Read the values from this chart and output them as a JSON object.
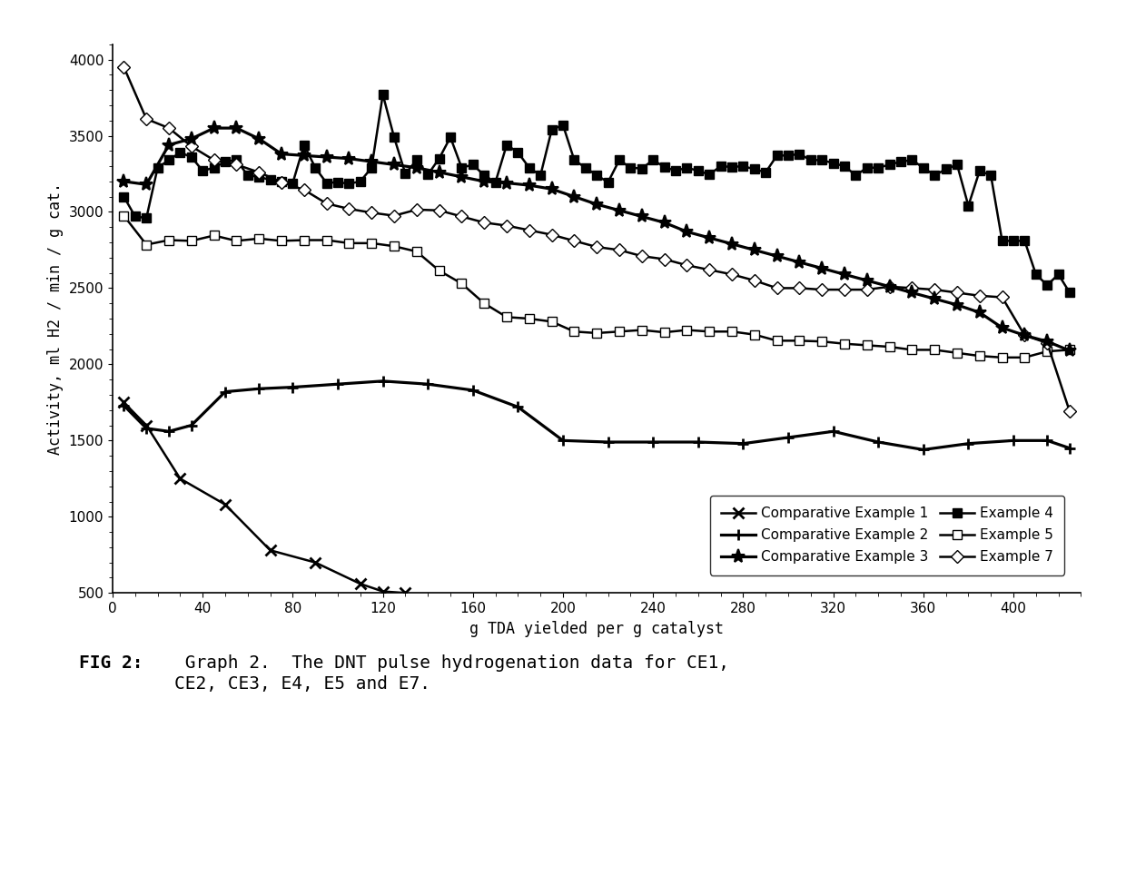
{
  "xlabel": "g TDA yielded per g catalyst",
  "ylabel": "Activity, ml H2 / min / g cat.",
  "xlim": [
    0,
    430
  ],
  "ylim": [
    500,
    4100
  ],
  "yticks": [
    500,
    1000,
    1500,
    2000,
    2500,
    3000,
    3500,
    4000
  ],
  "xticks": [
    0,
    40,
    80,
    120,
    160,
    200,
    240,
    280,
    320,
    360,
    400
  ],
  "background_color": "#ffffff",
  "caption_bold": "FIG 2:",
  "caption_normal": " Graph 2.  The DNT pulse hydrogenation data for CE1,\nCE2, CE3, E4, E5 and E7.",
  "CE1_x": [
    5,
    15,
    30,
    50,
    70,
    90,
    110,
    120,
    130
  ],
  "CE1_y": [
    1750,
    1600,
    1250,
    1080,
    780,
    700,
    560,
    510,
    500
  ],
  "CE2_x": [
    5,
    15,
    25,
    35,
    50,
    65,
    80,
    100,
    120,
    140,
    160,
    180,
    200,
    220,
    240,
    260,
    280,
    300,
    320,
    340,
    360,
    380,
    400,
    415,
    425
  ],
  "CE2_y": [
    1730,
    1580,
    1560,
    1600,
    1820,
    1840,
    1850,
    1870,
    1890,
    1870,
    1830,
    1720,
    1500,
    1490,
    1490,
    1490,
    1480,
    1520,
    1560,
    1490,
    1440,
    1480,
    1500,
    1500,
    1450
  ],
  "CE3_x": [
    5,
    15,
    25,
    35,
    45,
    55,
    65,
    75,
    85,
    95,
    105,
    115,
    125,
    135,
    145,
    155,
    165,
    175,
    185,
    195,
    205,
    215,
    225,
    235,
    245,
    255,
    265,
    275,
    285,
    295,
    305,
    315,
    325,
    335,
    345,
    355,
    365,
    375,
    385,
    395,
    405,
    415,
    425
  ],
  "CE3_y": [
    3200,
    3180,
    3440,
    3480,
    3550,
    3550,
    3480,
    3380,
    3370,
    3360,
    3350,
    3330,
    3310,
    3290,
    3260,
    3230,
    3200,
    3190,
    3175,
    3150,
    3100,
    3050,
    3010,
    2970,
    2930,
    2870,
    2830,
    2790,
    2750,
    2710,
    2670,
    2630,
    2590,
    2550,
    2510,
    2470,
    2430,
    2390,
    2340,
    2240,
    2190,
    2150,
    2090
  ],
  "E4_x": [
    5,
    10,
    15,
    20,
    25,
    30,
    35,
    40,
    45,
    50,
    55,
    60,
    65,
    70,
    75,
    80,
    85,
    90,
    95,
    100,
    105,
    110,
    115,
    120,
    125,
    130,
    135,
    140,
    145,
    150,
    155,
    160,
    165,
    170,
    175,
    180,
    185,
    190,
    195,
    200,
    205,
    210,
    215,
    220,
    225,
    230,
    235,
    240,
    245,
    250,
    255,
    260,
    265,
    270,
    275,
    280,
    285,
    290,
    295,
    300,
    305,
    310,
    315,
    320,
    325,
    330,
    335,
    340,
    345,
    350,
    355,
    360,
    365,
    370,
    375,
    380,
    385,
    390,
    395,
    400,
    405,
    410,
    415,
    420,
    425
  ],
  "E4_y": [
    3100,
    2970,
    2960,
    3290,
    3340,
    3390,
    3360,
    3270,
    3290,
    3330,
    3340,
    3240,
    3230,
    3210,
    3200,
    3190,
    3440,
    3290,
    3190,
    3195,
    3185,
    3200,
    3290,
    3770,
    3490,
    3250,
    3340,
    3245,
    3350,
    3490,
    3290,
    3310,
    3240,
    3195,
    3440,
    3390,
    3290,
    3240,
    3540,
    3570,
    3340,
    3290,
    3240,
    3195,
    3340,
    3290,
    3285,
    3340,
    3295,
    3270,
    3290,
    3270,
    3245,
    3300,
    3295,
    3300,
    3280,
    3260,
    3370,
    3370,
    3380,
    3340,
    3340,
    3320,
    3300,
    3240,
    3290,
    3290,
    3310,
    3330,
    3340,
    3290,
    3240,
    3280,
    3310,
    3040,
    3270,
    3240,
    2810,
    2810,
    2810,
    2590,
    2520,
    2590,
    2470
  ],
  "E5_x": [
    5,
    15,
    25,
    35,
    45,
    55,
    65,
    75,
    85,
    95,
    105,
    115,
    125,
    135,
    145,
    155,
    165,
    175,
    185,
    195,
    205,
    215,
    225,
    235,
    245,
    255,
    265,
    275,
    285,
    295,
    305,
    315,
    325,
    335,
    345,
    355,
    365,
    375,
    385,
    395,
    405,
    415,
    425
  ],
  "E5_y": [
    2975,
    2785,
    2815,
    2810,
    2845,
    2810,
    2825,
    2810,
    2815,
    2815,
    2795,
    2795,
    2775,
    2740,
    2615,
    2530,
    2400,
    2310,
    2300,
    2280,
    2215,
    2205,
    2215,
    2225,
    2210,
    2225,
    2215,
    2215,
    2195,
    2155,
    2155,
    2150,
    2135,
    2125,
    2115,
    2095,
    2095,
    2075,
    2055,
    2045,
    2045,
    2085,
    2095
  ],
  "E7_x": [
    5,
    15,
    25,
    35,
    45,
    55,
    65,
    75,
    85,
    95,
    105,
    115,
    125,
    135,
    145,
    155,
    165,
    175,
    185,
    195,
    205,
    215,
    225,
    235,
    245,
    255,
    265,
    275,
    285,
    295,
    305,
    315,
    325,
    335,
    345,
    355,
    365,
    375,
    385,
    395,
    405,
    415,
    425
  ],
  "E7_y": [
    3950,
    3610,
    3550,
    3430,
    3340,
    3310,
    3260,
    3195,
    3145,
    3055,
    3020,
    2995,
    2975,
    3015,
    3010,
    2970,
    2930,
    2910,
    2880,
    2850,
    2810,
    2770,
    2750,
    2710,
    2690,
    2650,
    2620,
    2590,
    2550,
    2500,
    2500,
    2490,
    2490,
    2490,
    2510,
    2500,
    2490,
    2470,
    2450,
    2440,
    2190,
    2140,
    1690
  ]
}
